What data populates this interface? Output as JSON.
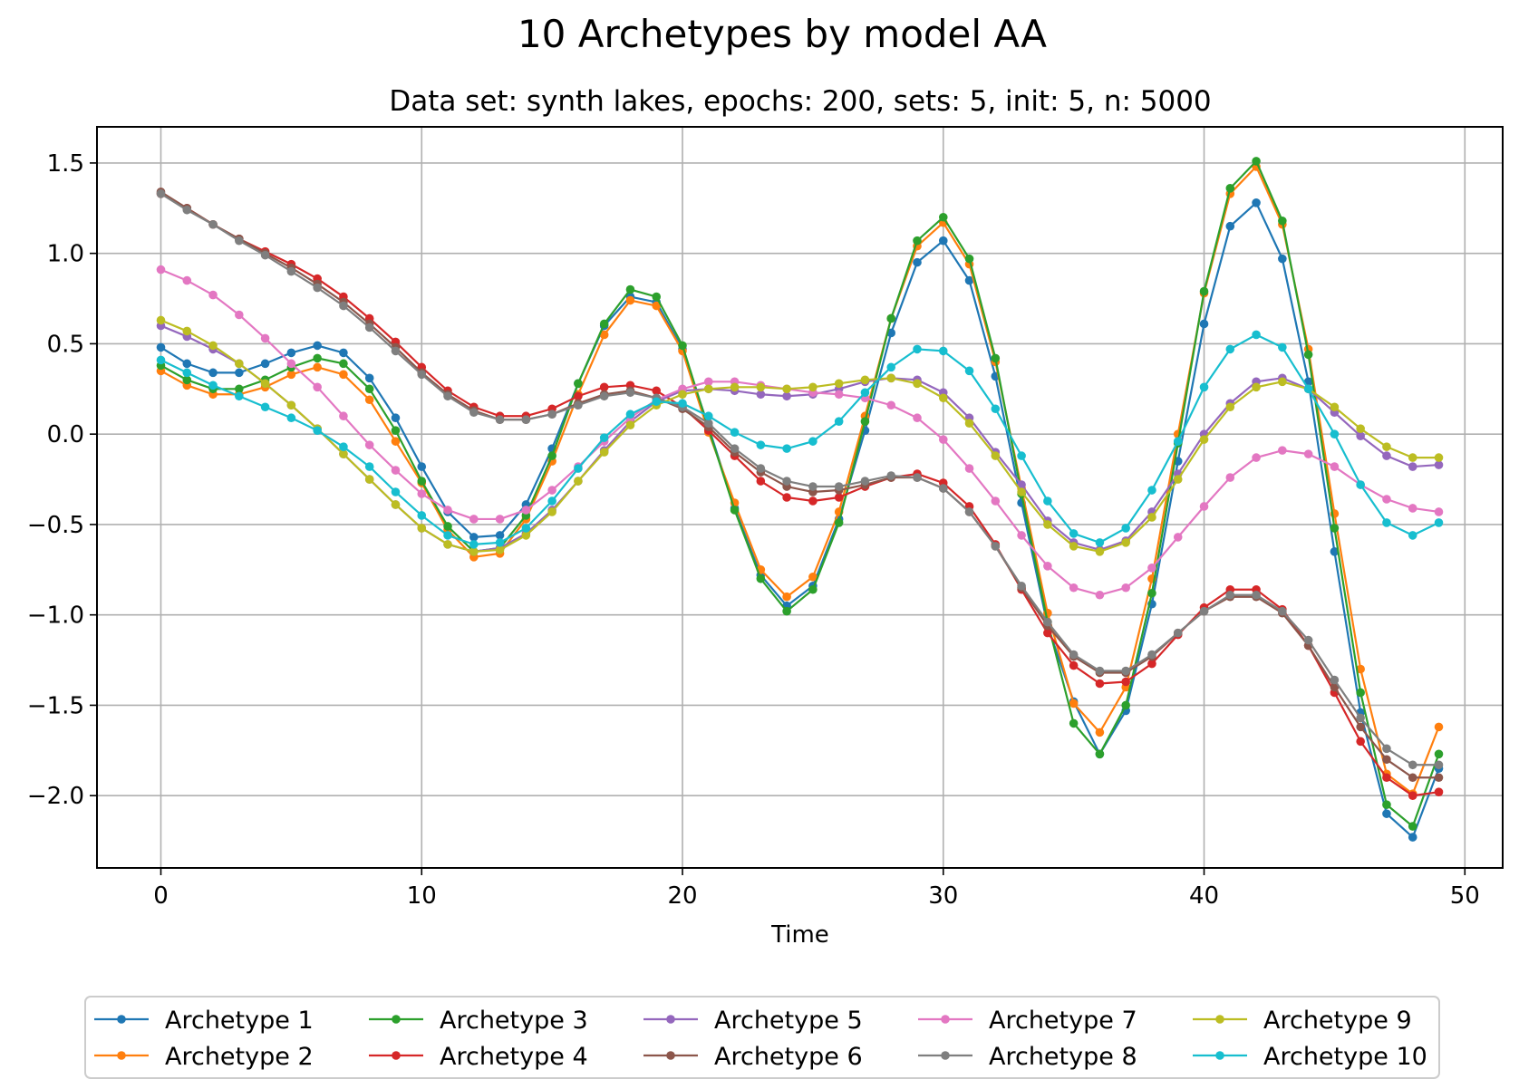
{
  "chart_data": {
    "type": "line",
    "title": "10 Archetypes by model AA",
    "subtitle": "Data set: synth lakes, epochs: 200, sets: 5, init: 5, n: 5000",
    "xlabel": "Time",
    "ylabel": "",
    "xlim": [
      -2.45,
      51.45
    ],
    "ylim": [
      -2.4,
      1.7
    ],
    "xticks": [
      0,
      10,
      20,
      30,
      40,
      50
    ],
    "xtick_labels": [
      "0",
      "10",
      "20",
      "30",
      "40",
      "50"
    ],
    "yticks": [
      1.5,
      1.0,
      0.5,
      0.0,
      -0.5,
      -1.0,
      -1.5,
      -2.0
    ],
    "ytick_labels": [
      "1.5",
      "1.0",
      "0.5",
      "0.0",
      "−0.5",
      "−1.0",
      "−1.5",
      "−2.0"
    ],
    "grid": true,
    "legend_position": "bottom-center",
    "x": [
      0,
      1,
      2,
      3,
      4,
      5,
      6,
      7,
      8,
      9,
      10,
      11,
      12,
      13,
      14,
      15,
      16,
      17,
      18,
      19,
      20,
      21,
      22,
      23,
      24,
      25,
      26,
      27,
      28,
      29,
      30,
      31,
      32,
      33,
      34,
      35,
      36,
      37,
      38,
      39,
      40,
      41,
      42,
      43,
      44,
      45,
      46,
      47,
      48,
      49
    ],
    "series": [
      {
        "name": "Archetype 1",
        "color": "#1f77b4",
        "values": [
          0.48,
          0.39,
          0.34,
          0.34,
          0.39,
          0.45,
          0.49,
          0.45,
          0.31,
          0.09,
          -0.18,
          -0.43,
          -0.57,
          -0.56,
          -0.39,
          -0.08,
          0.28,
          0.6,
          0.76,
          0.73,
          0.47,
          0.04,
          -0.41,
          -0.78,
          -0.95,
          -0.84,
          -0.47,
          0.02,
          0.56,
          0.95,
          1.07,
          0.85,
          0.32,
          -0.38,
          -1.06,
          -1.48,
          -1.77,
          -1.53,
          -0.94,
          -0.15,
          0.61,
          1.15,
          1.28,
          0.97,
          0.29,
          -0.65,
          -1.54,
          -2.1,
          -2.23,
          -1.85
        ]
      },
      {
        "name": "Archetype 2",
        "color": "#ff7f0e",
        "values": [
          0.35,
          0.27,
          0.22,
          0.22,
          0.26,
          0.33,
          0.37,
          0.33,
          0.19,
          -0.04,
          -0.27,
          -0.53,
          -0.68,
          -0.66,
          -0.47,
          -0.15,
          0.22,
          0.55,
          0.74,
          0.71,
          0.46,
          0.01,
          -0.38,
          -0.75,
          -0.9,
          -0.79,
          -0.43,
          0.1,
          0.64,
          1.04,
          1.17,
          0.94,
          0.4,
          -0.3,
          -0.99,
          -1.49,
          -1.65,
          -1.4,
          -0.8,
          0.0,
          0.78,
          1.33,
          1.48,
          1.16,
          0.47,
          -0.44,
          -1.3,
          -1.88,
          -1.99,
          -1.62
        ]
      },
      {
        "name": "Archetype 3",
        "color": "#2ca02c",
        "values": [
          0.38,
          0.3,
          0.25,
          0.25,
          0.3,
          0.37,
          0.42,
          0.39,
          0.25,
          0.02,
          -0.26,
          -0.51,
          -0.65,
          -0.63,
          -0.45,
          -0.12,
          0.28,
          0.61,
          0.8,
          0.76,
          0.49,
          0.03,
          -0.42,
          -0.8,
          -0.98,
          -0.86,
          -0.49,
          0.07,
          0.64,
          1.07,
          1.2,
          0.97,
          0.42,
          -0.33,
          -1.04,
          -1.6,
          -1.77,
          -1.5,
          -0.88,
          -0.05,
          0.79,
          1.36,
          1.51,
          1.18,
          0.44,
          -0.52,
          -1.43,
          -2.05,
          -2.17,
          -1.77
        ]
      },
      {
        "name": "Archetype 4",
        "color": "#d62728",
        "values": [
          1.33,
          1.25,
          1.16,
          1.08,
          1.01,
          0.94,
          0.86,
          0.76,
          0.64,
          0.51,
          0.37,
          0.24,
          0.15,
          0.1,
          0.1,
          0.14,
          0.21,
          0.26,
          0.27,
          0.24,
          0.15,
          0.02,
          -0.12,
          -0.26,
          -0.35,
          -0.37,
          -0.35,
          -0.29,
          -0.24,
          -0.22,
          -0.27,
          -0.4,
          -0.61,
          -0.86,
          -1.1,
          -1.28,
          -1.38,
          -1.37,
          -1.27,
          -1.11,
          -0.96,
          -0.86,
          -0.86,
          -0.97,
          -1.17,
          -1.43,
          -1.7,
          -1.9,
          -2.0,
          -1.98
        ]
      },
      {
        "name": "Archetype 5",
        "color": "#9467bd",
        "values": [
          0.6,
          0.54,
          0.47,
          0.39,
          0.28,
          0.16,
          0.03,
          -0.11,
          -0.25,
          -0.39,
          -0.52,
          -0.61,
          -0.65,
          -0.63,
          -0.55,
          -0.42,
          -0.26,
          -0.09,
          0.07,
          0.18,
          0.24,
          0.25,
          0.24,
          0.22,
          0.21,
          0.22,
          0.25,
          0.29,
          0.31,
          0.3,
          0.23,
          0.09,
          -0.1,
          -0.28,
          -0.48,
          -0.6,
          -0.64,
          -0.59,
          -0.43,
          -0.22,
          0.0,
          0.17,
          0.29,
          0.31,
          0.25,
          0.12,
          -0.01,
          -0.12,
          -0.18,
          -0.17
        ]
      },
      {
        "name": "Archetype 6",
        "color": "#8c564b",
        "values": [
          1.34,
          1.25,
          1.16,
          1.08,
          1.0,
          0.92,
          0.83,
          0.73,
          0.61,
          0.48,
          0.34,
          0.22,
          0.13,
          0.08,
          0.08,
          0.11,
          0.17,
          0.22,
          0.24,
          0.2,
          0.14,
          0.04,
          -0.1,
          -0.21,
          -0.29,
          -0.32,
          -0.31,
          -0.28,
          -0.24,
          -0.24,
          -0.3,
          -0.43,
          -0.62,
          -0.85,
          -1.06,
          -1.23,
          -1.32,
          -1.32,
          -1.23,
          -1.1,
          -0.98,
          -0.9,
          -0.9,
          -0.99,
          -1.17,
          -1.4,
          -1.62,
          -1.8,
          -1.9,
          -1.9
        ]
      },
      {
        "name": "Archetype 7",
        "color": "#e377c2",
        "values": [
          0.91,
          0.85,
          0.77,
          0.66,
          0.53,
          0.39,
          0.26,
          0.1,
          -0.06,
          -0.2,
          -0.33,
          -0.42,
          -0.47,
          -0.47,
          -0.42,
          -0.31,
          -0.18,
          -0.04,
          0.09,
          0.19,
          0.25,
          0.29,
          0.29,
          0.27,
          0.25,
          0.23,
          0.22,
          0.2,
          0.16,
          0.09,
          -0.03,
          -0.19,
          -0.37,
          -0.56,
          -0.73,
          -0.85,
          -0.89,
          -0.85,
          -0.74,
          -0.57,
          -0.4,
          -0.24,
          -0.13,
          -0.09,
          -0.11,
          -0.18,
          -0.28,
          -0.36,
          -0.41,
          -0.43
        ]
      },
      {
        "name": "Archetype 8",
        "color": "#7f7f7f",
        "values": [
          1.33,
          1.24,
          1.16,
          1.07,
          0.99,
          0.9,
          0.81,
          0.71,
          0.59,
          0.46,
          0.33,
          0.21,
          0.12,
          0.08,
          0.08,
          0.11,
          0.16,
          0.21,
          0.23,
          0.2,
          0.15,
          0.06,
          -0.08,
          -0.19,
          -0.26,
          -0.29,
          -0.29,
          -0.26,
          -0.23,
          -0.24,
          -0.3,
          -0.43,
          -0.62,
          -0.84,
          -1.04,
          -1.22,
          -1.31,
          -1.31,
          -1.22,
          -1.1,
          -0.98,
          -0.89,
          -0.89,
          -0.98,
          -1.14,
          -1.36,
          -1.57,
          -1.74,
          -1.83,
          -1.83
        ]
      },
      {
        "name": "Archetype 9",
        "color": "#bcbd22",
        "values": [
          0.63,
          0.57,
          0.49,
          0.39,
          0.28,
          0.16,
          0.03,
          -0.11,
          -0.25,
          -0.39,
          -0.52,
          -0.61,
          -0.65,
          -0.64,
          -0.56,
          -0.43,
          -0.26,
          -0.1,
          0.05,
          0.16,
          0.22,
          0.25,
          0.26,
          0.26,
          0.25,
          0.26,
          0.28,
          0.3,
          0.31,
          0.28,
          0.2,
          0.06,
          -0.12,
          -0.32,
          -0.5,
          -0.62,
          -0.65,
          -0.6,
          -0.46,
          -0.25,
          -0.03,
          0.15,
          0.26,
          0.29,
          0.25,
          0.15,
          0.03,
          -0.07,
          -0.13,
          -0.13
        ]
      },
      {
        "name": "Archetype 10",
        "color": "#17becf",
        "values": [
          0.41,
          0.34,
          0.27,
          0.21,
          0.15,
          0.09,
          0.02,
          -0.07,
          -0.18,
          -0.32,
          -0.45,
          -0.56,
          -0.61,
          -0.6,
          -0.52,
          -0.37,
          -0.19,
          -0.02,
          0.11,
          0.18,
          0.17,
          0.1,
          0.01,
          -0.06,
          -0.08,
          -0.04,
          0.07,
          0.23,
          0.37,
          0.47,
          0.46,
          0.35,
          0.14,
          -0.12,
          -0.37,
          -0.55,
          -0.6,
          -0.52,
          -0.31,
          -0.04,
          0.26,
          0.47,
          0.55,
          0.48,
          0.25,
          0.0,
          -0.28,
          -0.49,
          -0.56,
          -0.49
        ]
      }
    ]
  }
}
